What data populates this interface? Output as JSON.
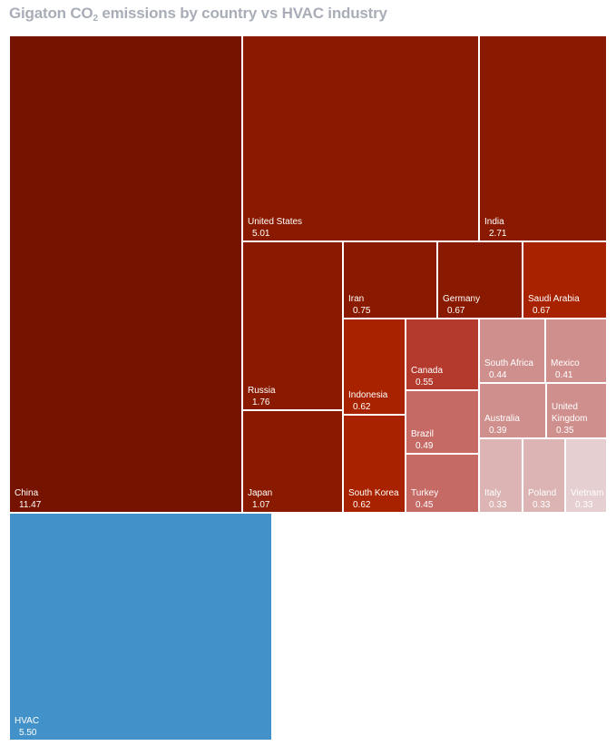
{
  "title": {
    "prefix": "Gigaton CO",
    "subscript": "2",
    "suffix": " emissions by country vs HVAC industry"
  },
  "chart_data": {
    "type": "treemap",
    "title": "Gigaton CO2 emissions by country vs HVAC industry",
    "colors": {
      "dark": "#761200",
      "mid": "#891a00",
      "bright": "#a82200",
      "red": "#b43a2e",
      "rose": "#c66a66",
      "pink": "#cf8f8d",
      "pale": "#dbb4b3",
      "palest": "#e6cfd0",
      "hvac": "#4292c9",
      "label": "#ffffff"
    },
    "items": [
      {
        "name": "China",
        "value": "11.47",
        "color": "dark"
      },
      {
        "name": "United States",
        "value": "5.01",
        "color": "mid"
      },
      {
        "name": "India",
        "value": "2.71",
        "color": "mid"
      },
      {
        "name": "Russia",
        "value": "1.76",
        "color": "mid"
      },
      {
        "name": "Japan",
        "value": "1.07",
        "color": "mid"
      },
      {
        "name": "Iran",
        "value": "0.75",
        "color": "mid"
      },
      {
        "name": "Germany",
        "value": "0.67",
        "color": "mid"
      },
      {
        "name": "Saudi Arabia",
        "value": "0.67",
        "color": "bright"
      },
      {
        "name": "Indonesia",
        "value": "0.62",
        "color": "bright"
      },
      {
        "name": "South Korea",
        "value": "0.62",
        "color": "bright"
      },
      {
        "name": "Canada",
        "value": "0.55",
        "color": "red"
      },
      {
        "name": "Brazil",
        "value": "0.49",
        "color": "rose"
      },
      {
        "name": "Turkey",
        "value": "0.45",
        "color": "rose"
      },
      {
        "name": "South Africa",
        "value": "0.44",
        "color": "pink"
      },
      {
        "name": "Mexico",
        "value": "0.41",
        "color": "pink"
      },
      {
        "name": "Australia",
        "value": "0.39",
        "color": "pink"
      },
      {
        "name": "United Kingdom",
        "value": "0.35",
        "color": "pink"
      },
      {
        "name": "Italy",
        "value": "0.33",
        "color": "pale"
      },
      {
        "name": "Poland",
        "value": "0.33",
        "color": "pale"
      },
      {
        "name": "Vietnam",
        "value": "0.33",
        "color": "palest"
      },
      {
        "name": "HVAC",
        "value": "5.50",
        "color": "hvac"
      }
    ]
  }
}
